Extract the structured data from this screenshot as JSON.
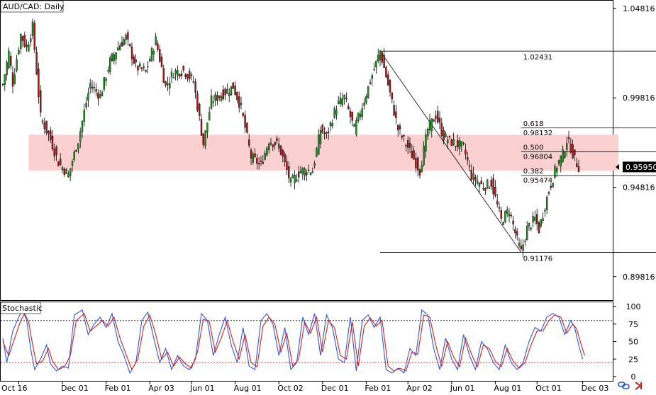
{
  "window": {
    "title": "AUD/CAD: Daily",
    "indicator_title": "Stochastic",
    "current_price": "0.95950"
  },
  "icons": [
    "link-icon",
    "arrow-icon"
  ],
  "colors": {
    "bull": "#1a9a1a",
    "bear": "#b01818",
    "zone": "#fbd0d0",
    "stoch_main": "#3355dd",
    "stoch_signal": "#cc2222",
    "level_line": "#000000"
  },
  "chart_data": [
    {
      "type": "candlestick",
      "title": "AUD/CAD: Daily",
      "ylim": [
        0.885,
        1.0525
      ],
      "ytick_labels": [
        "1.04816",
        "0.99816",
        "0.94816",
        "0.89816"
      ],
      "ytick_values": [
        1.04816,
        0.99816,
        0.94816,
        0.89816
      ],
      "xtick_labels": [
        "Oct 16",
        "Dec 01",
        "Feb 01",
        "Apr 03",
        "Jun 01",
        "Aug 01",
        "Oct 02",
        "Dec 01",
        "Feb 01",
        "Apr 02",
        "Jun 01",
        "Aug 01",
        "Oct 01",
        "Dec 03"
      ],
      "bars_total": 300,
      "xtick_bar_index": [
        8,
        30,
        52,
        74,
        95,
        117,
        139,
        161,
        183,
        204,
        226,
        248,
        269,
        292
      ],
      "current_price": 0.9595,
      "anchors": [
        [
          0,
          1.0055
        ],
        [
          3,
          1.0235
        ],
        [
          5,
          1.0065
        ],
        [
          9,
          1.0335
        ],
        [
          12,
          1.026
        ],
        [
          15,
          1.038
        ],
        [
          19,
          0.9875
        ],
        [
          24,
          0.975
        ],
        [
          28,
          0.962
        ],
        [
          33,
          0.955
        ],
        [
          38,
          0.9745
        ],
        [
          44,
          1.006
        ],
        [
          49,
          0.999
        ],
        [
          54,
          1.0185
        ],
        [
          58,
          1.0265
        ],
        [
          62,
          1.032
        ],
        [
          67,
          1.0155
        ],
        [
          72,
          1.013
        ],
        [
          77,
          1.0305
        ],
        [
          82,
          1.0045
        ],
        [
          86,
          1.0125
        ],
        [
          91,
          1.0135
        ],
        [
          96,
          1.0075
        ],
        [
          101,
          0.9725
        ],
        [
          105,
          0.9965
        ],
        [
          111,
          1.0005
        ],
        [
          116,
          1.0045
        ],
        [
          120,
          0.9925
        ],
        [
          125,
          0.965
        ],
        [
          130,
          0.9605
        ],
        [
          134,
          0.9745
        ],
        [
          139,
          0.9715
        ],
        [
          145,
          0.9505
        ],
        [
          150,
          0.9575
        ],
        [
          156,
          0.9575
        ],
        [
          160,
          0.9805
        ],
        [
          163,
          0.9765
        ],
        [
          168,
          0.9935
        ],
        [
          172,
          0.9985
        ],
        [
          177,
          0.9805
        ],
        [
          181,
          0.9935
        ],
        [
          185,
          1.0075
        ],
        [
          190,
          1.0243
        ],
        [
          194,
          1.0055
        ],
        [
          199,
          0.9805
        ],
        [
          204,
          0.9705
        ],
        [
          210,
          0.9575
        ],
        [
          214,
          0.9805
        ],
        [
          218,
          0.9885
        ],
        [
          222,
          0.9765
        ],
        [
          226,
          0.9735
        ],
        [
          232,
          0.9705
        ],
        [
          236,
          0.9545
        ],
        [
          242,
          0.9485
        ],
        [
          246,
          0.9505
        ],
        [
          251,
          0.9295
        ],
        [
          255,
          0.9355
        ],
        [
          259,
          0.9185
        ],
        [
          261,
          0.9118
        ],
        [
          264,
          0.925
        ],
        [
          268,
          0.9305
        ],
        [
          270,
          0.9245
        ],
        [
          275,
          0.9465
        ],
        [
          279,
          0.9605
        ],
        [
          282,
          0.9665
        ],
        [
          284,
          0.9745
        ],
        [
          286,
          0.9705
        ],
        [
          288,
          0.9635
        ],
        [
          290,
          0.9595
        ]
      ],
      "support_zone": {
        "from": 0.9575,
        "to": 0.9775,
        "x_start_bar": 13,
        "x_end_bar": 310
      },
      "fibonacci": {
        "swing_high": {
          "bar": 190,
          "price": 1.02431,
          "label": "1.02431"
        },
        "swing_low": {
          "bar": 261,
          "price": 0.91176,
          "label": "0.91176"
        },
        "x_end_bar": 354,
        "levels": [
          {
            "ratio": "0.618",
            "price": 0.98132,
            "price_label": "0.98132"
          },
          {
            "ratio": "0.500",
            "price": 0.96804,
            "price_label": "0.96804"
          },
          {
            "ratio": "0.382",
            "price": 0.95474,
            "price_label": "0.95474"
          }
        ]
      }
    },
    {
      "type": "line",
      "title": "Stochastic",
      "ylim": [
        0,
        100
      ],
      "ytick_labels": [
        "100",
        "75",
        "50",
        "25",
        "0"
      ],
      "ytick_values": [
        100,
        75,
        50,
        25,
        0
      ],
      "levels": [
        80,
        20
      ],
      "series": [
        {
          "color": "#3355dd",
          "anchors": [
            [
              0,
              55
            ],
            [
              2,
              20
            ],
            [
              5,
              65
            ],
            [
              8,
              85
            ],
            [
              10,
              95
            ],
            [
              12,
              80
            ],
            [
              14,
              40
            ],
            [
              16,
              10
            ],
            [
              19,
              25
            ],
            [
              22,
              45
            ],
            [
              24,
              18
            ],
            [
              27,
              8
            ],
            [
              30,
              15
            ],
            [
              33,
              12
            ],
            [
              36,
              88
            ],
            [
              40,
              95
            ],
            [
              43,
              60
            ],
            [
              46,
              75
            ],
            [
              49,
              85
            ],
            [
              52,
              70
            ],
            [
              55,
              90
            ],
            [
              58,
              50
            ],
            [
              61,
              30
            ],
            [
              64,
              5
            ],
            [
              67,
              20
            ],
            [
              70,
              80
            ],
            [
              73,
              92
            ],
            [
              76,
              55
            ],
            [
              79,
              20
            ],
            [
              82,
              40
            ],
            [
              85,
              10
            ],
            [
              88,
              30
            ],
            [
              91,
              15
            ],
            [
              94,
              10
            ],
            [
              97,
              25
            ],
            [
              100,
              90
            ],
            [
              103,
              80
            ],
            [
              106,
              30
            ],
            [
              109,
              60
            ],
            [
              112,
              85
            ],
            [
              115,
              45
            ],
            [
              118,
              20
            ],
            [
              121,
              70
            ],
            [
              124,
              15
            ],
            [
              127,
              10
            ],
            [
              130,
              80
            ],
            [
              133,
              90
            ],
            [
              136,
              75
            ],
            [
              139,
              30
            ],
            [
              142,
              70
            ],
            [
              145,
              10
            ],
            [
              148,
              20
            ],
            [
              151,
              85
            ],
            [
              154,
              60
            ],
            [
              157,
              90
            ],
            [
              160,
              30
            ],
            [
              163,
              88
            ],
            [
              166,
              70
            ],
            [
              169,
              25
            ],
            [
              172,
              20
            ],
            [
              175,
              85
            ],
            [
              178,
              8
            ],
            [
              181,
              80
            ],
            [
              184,
              88
            ],
            [
              187,
              70
            ],
            [
              190,
              85
            ],
            [
              193,
              10
            ],
            [
              196,
              5
            ],
            [
              199,
              12
            ],
            [
              202,
              5
            ],
            [
              205,
              40
            ],
            [
              208,
              30
            ],
            [
              211,
              95
            ],
            [
              214,
              88
            ],
            [
              217,
              40
            ],
            [
              220,
              10
            ],
            [
              223,
              55
            ],
            [
              226,
              25
            ],
            [
              229,
              10
            ],
            [
              232,
              60
            ],
            [
              235,
              30
            ],
            [
              238,
              10
            ],
            [
              241,
              50
            ],
            [
              244,
              40
            ],
            [
              247,
              20
            ],
            [
              250,
              10
            ],
            [
              253,
              45
            ],
            [
              256,
              20
            ],
            [
              259,
              10
            ],
            [
              262,
              20
            ],
            [
              265,
              50
            ],
            [
              268,
              70
            ],
            [
              271,
              65
            ],
            [
              274,
              85
            ],
            [
              277,
              90
            ],
            [
              280,
              85
            ],
            [
              283,
              60
            ],
            [
              286,
              80
            ],
            [
              288,
              70
            ],
            [
              290,
              45
            ],
            [
              292,
              25
            ]
          ]
        },
        {
          "color": "#cc2222",
          "anchors": [
            [
              0,
              50
            ],
            [
              3,
              30
            ],
            [
              6,
              55
            ],
            [
              9,
              80
            ],
            [
              11,
              90
            ],
            [
              13,
              78
            ],
            [
              15,
              45
            ],
            [
              17,
              18
            ],
            [
              20,
              22
            ],
            [
              23,
              40
            ],
            [
              25,
              22
            ],
            [
              28,
              10
            ],
            [
              31,
              14
            ],
            [
              34,
              30
            ],
            [
              37,
              80
            ],
            [
              41,
              90
            ],
            [
              44,
              65
            ],
            [
              47,
              72
            ],
            [
              50,
              80
            ],
            [
              53,
              72
            ],
            [
              56,
              85
            ],
            [
              59,
              55
            ],
            [
              62,
              32
            ],
            [
              65,
              10
            ],
            [
              68,
              25
            ],
            [
              71,
              72
            ],
            [
              74,
              88
            ],
            [
              77,
              60
            ],
            [
              80,
              25
            ],
            [
              83,
              35
            ],
            [
              86,
              15
            ],
            [
              89,
              28
            ],
            [
              92,
              18
            ],
            [
              95,
              12
            ],
            [
              98,
              35
            ],
            [
              101,
              82
            ],
            [
              104,
              78
            ],
            [
              107,
              35
            ],
            [
              110,
              55
            ],
            [
              113,
              80
            ],
            [
              116,
              50
            ],
            [
              119,
              25
            ],
            [
              122,
              60
            ],
            [
              125,
              20
            ],
            [
              128,
              14
            ],
            [
              131,
              72
            ],
            [
              134,
              85
            ],
            [
              137,
              75
            ],
            [
              140,
              35
            ],
            [
              143,
              62
            ],
            [
              146,
              15
            ],
            [
              149,
              25
            ],
            [
              152,
              78
            ],
            [
              155,
              62
            ],
            [
              158,
              85
            ],
            [
              161,
              35
            ],
            [
              164,
              80
            ],
            [
              167,
              70
            ],
            [
              170,
              30
            ],
            [
              173,
              25
            ],
            [
              176,
              78
            ],
            [
              179,
              15
            ],
            [
              182,
              72
            ],
            [
              185,
              84
            ],
            [
              188,
              72
            ],
            [
              191,
              80
            ],
            [
              194,
              15
            ],
            [
              197,
              8
            ],
            [
              200,
              12
            ],
            [
              203,
              8
            ],
            [
              206,
              35
            ],
            [
              209,
              32
            ],
            [
              212,
              88
            ],
            [
              215,
              85
            ],
            [
              218,
              45
            ],
            [
              221,
              15
            ],
            [
              224,
              50
            ],
            [
              227,
              28
            ],
            [
              230,
              14
            ],
            [
              233,
              55
            ],
            [
              236,
              32
            ],
            [
              239,
              14
            ],
            [
              242,
              45
            ],
            [
              245,
              40
            ],
            [
              248,
              22
            ],
            [
              251,
              14
            ],
            [
              254,
              40
            ],
            [
              257,
              22
            ],
            [
              260,
              12
            ],
            [
              263,
              20
            ],
            [
              266,
              45
            ],
            [
              269,
              65
            ],
            [
              272,
              65
            ],
            [
              275,
              80
            ],
            [
              278,
              88
            ],
            [
              281,
              85
            ],
            [
              284,
              62
            ],
            [
              287,
              75
            ],
            [
              289,
              68
            ],
            [
              291,
              48
            ],
            [
              293,
              30
            ]
          ]
        }
      ]
    }
  ]
}
